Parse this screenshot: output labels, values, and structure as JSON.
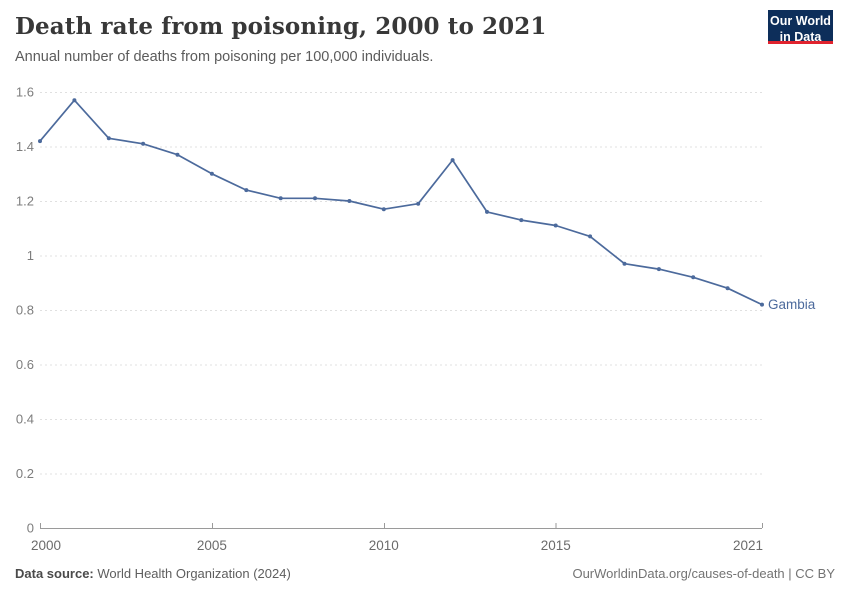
{
  "header": {
    "title": "Death rate from poisoning, 2000 to 2021",
    "subtitle": "Annual number of deaths from poisoning per 100,000 individuals."
  },
  "logo": {
    "line1": "Our World",
    "line2": "in Data",
    "bg_color": "#0d2e5a",
    "accent_color": "#e0232e"
  },
  "footer": {
    "source_label": "Data source:",
    "source_text": " World Health Organization (2024)",
    "credit": "OurWorldinData.org/causes-of-death | CC BY"
  },
  "chart_data": {
    "type": "line",
    "title": "Death rate from poisoning, 2000 to 2021",
    "xlabel": "",
    "ylabel": "",
    "x": [
      2000,
      2001,
      2002,
      2003,
      2004,
      2005,
      2006,
      2007,
      2008,
      2009,
      2010,
      2011,
      2012,
      2013,
      2014,
      2015,
      2016,
      2017,
      2018,
      2019,
      2020,
      2021
    ],
    "series": [
      {
        "name": "Gambia",
        "color": "#4C6A9C",
        "values": [
          1.42,
          1.57,
          1.43,
          1.41,
          1.37,
          1.3,
          1.24,
          1.21,
          1.21,
          1.2,
          1.17,
          1.19,
          1.35,
          1.16,
          1.13,
          1.11,
          1.07,
          0.97,
          0.95,
          0.92,
          0.88,
          0.82
        ]
      }
    ],
    "ylim": [
      0,
      1.6
    ],
    "yticks": [
      0,
      0.2,
      0.4,
      0.6,
      0.8,
      1,
      1.2,
      1.4,
      1.6
    ],
    "xticks": [
      2000,
      2005,
      2010,
      2015,
      2021
    ],
    "grid": true,
    "grid_style": "dashed",
    "legend": "end-of-line-label",
    "colors": {
      "gridline": "#e0e0e0",
      "axis": "#9a9a9a",
      "ytick_label": "#7d7d7d",
      "xtick_label": "#6b6b6b"
    }
  }
}
